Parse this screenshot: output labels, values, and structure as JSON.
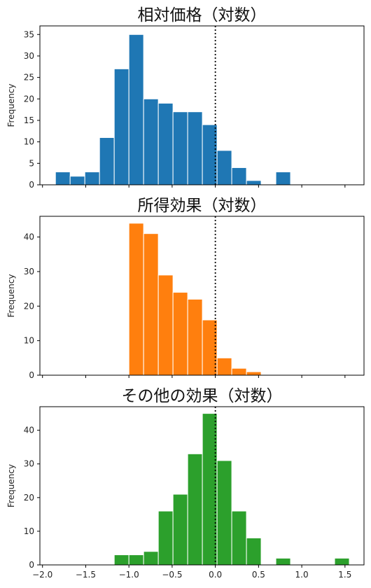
{
  "chart_data": [
    {
      "type": "bar",
      "title": "相対価格（対数）",
      "ylabel": "Frequency",
      "xlim": [
        -2.03,
        1.72
      ],
      "ylim": [
        0,
        37
      ],
      "yticks": [
        0,
        5,
        10,
        15,
        20,
        25,
        30,
        35
      ],
      "xticks": [
        -2.0,
        -1.5,
        -1.0,
        -0.5,
        0.0,
        0.5,
        1.0,
        1.5
      ],
      "show_xtick_labels": false,
      "color": "#1f77b4",
      "vline_x": 0.0,
      "grid": false,
      "bin_edges": [
        -1.85,
        -1.68,
        -1.51,
        -1.34,
        -1.17,
        -1.0,
        -0.83,
        -0.66,
        -0.49,
        -0.32,
        -0.15,
        0.02,
        0.19,
        0.36,
        0.53,
        0.7,
        0.87
      ],
      "values": [
        3,
        2,
        3,
        11,
        27,
        35,
        20,
        19,
        17,
        17,
        14,
        8,
        4,
        1,
        0,
        3
      ]
    },
    {
      "type": "bar",
      "title": "所得効果（対数）",
      "ylabel": "Frequency",
      "xlim": [
        -2.03,
        1.72
      ],
      "ylim": [
        0,
        46
      ],
      "yticks": [
        0,
        10,
        20,
        30,
        40
      ],
      "xticks": [
        -2.0,
        -1.5,
        -1.0,
        -0.5,
        0.0,
        0.5,
        1.0,
        1.5
      ],
      "show_xtick_labels": false,
      "color": "#ff7f0e",
      "vline_x": 0.0,
      "grid": false,
      "bin_edges": [
        -1.0,
        -0.83,
        -0.66,
        -0.49,
        -0.32,
        -0.15,
        0.02,
        0.19,
        0.36,
        0.53
      ],
      "values": [
        44,
        41,
        29,
        24,
        22,
        16,
        5,
        2,
        1
      ]
    },
    {
      "type": "bar",
      "title": "その他の効果（対数）",
      "ylabel": "Frequency",
      "xlim": [
        -2.03,
        1.72
      ],
      "ylim": [
        0,
        47
      ],
      "yticks": [
        0,
        10,
        20,
        30,
        40
      ],
      "xticks": [
        -2.0,
        -1.5,
        -1.0,
        -0.5,
        0.0,
        0.5,
        1.0,
        1.5
      ],
      "xtick_labels": [
        "−2.0",
        "−1.5",
        "−1.0",
        "−0.5",
        "0.0",
        "0.5",
        "1.0",
        "1.5"
      ],
      "show_xtick_labels": true,
      "color": "#2ca02c",
      "vline_x": 0.0,
      "grid": false,
      "bin_edges": [
        -1.17,
        -1.0,
        -0.83,
        -0.66,
        -0.49,
        -0.32,
        -0.15,
        0.02,
        0.19,
        0.36,
        0.53,
        0.7,
        0.87,
        1.04,
        1.21,
        1.38,
        1.55
      ],
      "values": [
        3,
        3,
        4,
        16,
        21,
        33,
        45,
        31,
        16,
        8,
        0,
        2,
        0,
        0,
        0,
        2
      ]
    }
  ]
}
